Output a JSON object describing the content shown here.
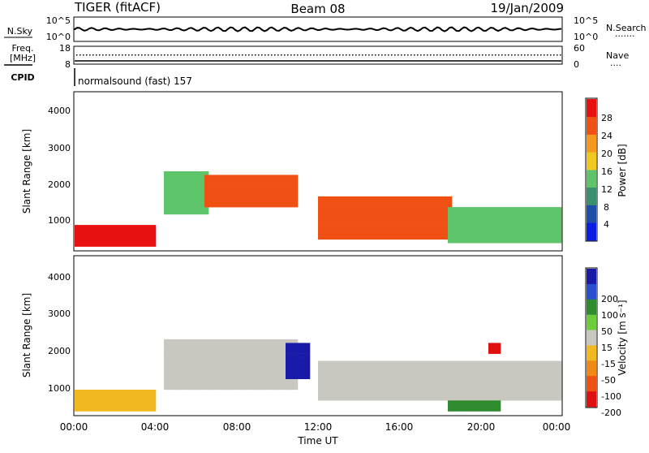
{
  "header": {
    "radar": "TIGER (fitACF)",
    "beam": "Beam 08",
    "date": "19/Jan/2009"
  },
  "noise_panel": {
    "left_label": "N.Sky",
    "right_label": "N.Search",
    "left_ticks": [
      "10^5",
      "10^0"
    ],
    "right_ticks": [
      "10^5",
      "10^0"
    ],
    "right_legend": "·······"
  },
  "freq_panel": {
    "left_label_1": "Freq.",
    "left_label_2": "[MHz]",
    "right_label": "Nave",
    "left_ticks": [
      "18",
      "8"
    ],
    "right_ticks": [
      "60",
      "0"
    ],
    "right_legend": "····"
  },
  "cpid_panel": {
    "label": "CPID",
    "text": "normalsound (fast) 157"
  },
  "power_panel": {
    "y_label": "Slant Range [km]",
    "y_ticks": [
      "4000",
      "3000",
      "2000",
      "1000"
    ],
    "colorbar_label": "Power [dB]",
    "colorbar_ticks": [
      "28",
      "24",
      "20",
      "16",
      "12",
      "8",
      "4"
    ],
    "colors": [
      "#0a1ee6",
      "#1e4fa8",
      "#3a8f6e",
      "#5ec46a",
      "#f2c81e",
      "#f59a1e",
      "#f05014",
      "#e81010"
    ]
  },
  "velocity_panel": {
    "y_label": "Slant Range [km]",
    "y_ticks": [
      "4000",
      "3000",
      "2000",
      "1000"
    ],
    "colorbar_label": "Velocity [m s⁻¹]",
    "colorbar_ticks": [
      "200",
      "100",
      "50",
      "15",
      "-15",
      "-50",
      "-100",
      "-200"
    ],
    "colors": [
      "#1a1aa8",
      "#2a4fd0",
      "#2e8c2e",
      "#6ccc3a",
      "#c8c8c0",
      "#f2b820",
      "#f08a14",
      "#f05014",
      "#e01010"
    ]
  },
  "x_axis": {
    "ticks": [
      "00:00",
      "04:00",
      "08:00",
      "12:00",
      "16:00",
      "20:00",
      "00:00"
    ],
    "label": "Time UT"
  },
  "chart_data": [
    {
      "type": "heatmap",
      "quantity": "Power",
      "units": "dB",
      "xlim_hours": [
        0,
        24
      ],
      "ylim_km": [
        180,
        4600
      ],
      "color_range": [
        0,
        30
      ],
      "regions": [
        {
          "t_start": 0.0,
          "t_end": 4.0,
          "r_min": 300,
          "r_max": 900,
          "power_db": 27
        },
        {
          "t_start": 4.5,
          "t_end": 6.5,
          "r_min": 1200,
          "r_max": 2400,
          "power_db": 14
        },
        {
          "t_start": 6.5,
          "t_end": 11.0,
          "r_min": 1400,
          "r_max": 2300,
          "power_db": 25
        },
        {
          "t_start": 12.0,
          "t_end": 18.5,
          "r_min": 500,
          "r_max": 1700,
          "power_db": 26
        },
        {
          "t_start": 18.5,
          "t_end": 24.0,
          "r_min": 400,
          "r_max": 1400,
          "power_db": 12
        }
      ]
    },
    {
      "type": "heatmap",
      "quantity": "Velocity",
      "units": "m s^-1",
      "xlim_hours": [
        0,
        24
      ],
      "ylim_km": [
        180,
        4600
      ],
      "color_range": [
        -250,
        250
      ],
      "regions": [
        {
          "t_start": 0.0,
          "t_end": 4.0,
          "r_min": 300,
          "r_max": 900,
          "velocity": -40
        },
        {
          "t_start": 4.5,
          "t_end": 11.0,
          "r_min": 900,
          "r_max": 2300,
          "velocity": 0
        },
        {
          "t_start": 10.5,
          "t_end": 11.5,
          "r_min": 1200,
          "r_max": 2200,
          "velocity": 200
        },
        {
          "t_start": 12.0,
          "t_end": 24.0,
          "r_min": 600,
          "r_max": 1700,
          "velocity": 0
        },
        {
          "t_start": 18.5,
          "t_end": 21.0,
          "r_min": 300,
          "r_max": 600,
          "velocity": 40
        },
        {
          "t_start": 20.5,
          "t_end": 21.0,
          "r_min": 1900,
          "r_max": 2200,
          "velocity": -200
        }
      ]
    }
  ]
}
